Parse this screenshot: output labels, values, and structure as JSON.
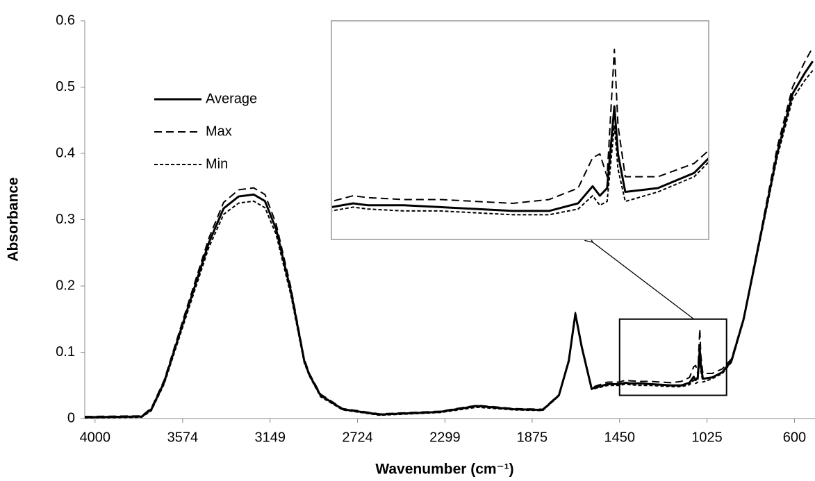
{
  "chart_data": {
    "type": "line",
    "x_label": "Wavenumber (cm⁻¹)",
    "y_label": "Absorbance",
    "xlim": [
      4050,
      500
    ],
    "xticks": [
      4000,
      3574,
      3149,
      2724,
      2299,
      1875,
      1450,
      1025,
      600
    ],
    "ylim": [
      0,
      0.6
    ],
    "yticks": [
      0,
      0.1,
      0.2,
      0.3,
      0.4,
      0.5,
      0.6
    ],
    "legend": "top-left",
    "inset": {
      "xlim": [
        1450,
        930
      ],
      "ylim": [
        0.035,
        0.15
      ]
    },
    "x": [
      4050,
      3773,
      3726,
      3664,
      3556,
      3447,
      3375,
      3302,
      3229,
      3174,
      3120,
      3048,
      2983,
      2958,
      2904,
      2796,
      2616,
      2324,
      2143,
      1962,
      1824,
      1745,
      1697,
      1665,
      1634,
      1586,
      1507,
      1450,
      1420,
      1400,
      1350,
      1300,
      1250,
      1200,
      1150,
      1110,
      1090,
      1080,
      1070,
      1060,
      1055,
      1045,
      1000,
      950,
      906,
      847,
      758,
      683,
      609,
      550,
      511
    ],
    "series": [
      {
        "name": "Average",
        "color": "#000000",
        "style": "solid",
        "values": [
          0.002,
          0.003,
          0.014,
          0.055,
          0.16,
          0.265,
          0.317,
          0.335,
          0.338,
          0.328,
          0.286,
          0.192,
          0.087,
          0.066,
          0.035,
          0.014,
          0.006,
          0.01,
          0.019,
          0.014,
          0.013,
          0.035,
          0.087,
          0.158,
          0.108,
          0.045,
          0.052,
          0.052,
          0.054,
          0.053,
          0.053,
          0.052,
          0.051,
          0.05,
          0.05,
          0.054,
          0.063,
          0.058,
          0.062,
          0.105,
          0.08,
          0.06,
          0.062,
          0.07,
          0.087,
          0.15,
          0.286,
          0.401,
          0.49,
          0.521,
          0.539
        ]
      },
      {
        "name": "Max",
        "color": "#000000",
        "style": "dashed",
        "values": [
          0.003,
          0.004,
          0.016,
          0.058,
          0.165,
          0.272,
          0.326,
          0.345,
          0.348,
          0.338,
          0.294,
          0.198,
          0.09,
          0.068,
          0.037,
          0.015,
          0.007,
          0.011,
          0.02,
          0.015,
          0.014,
          0.036,
          0.089,
          0.16,
          0.11,
          0.047,
          0.055,
          0.055,
          0.058,
          0.057,
          0.056,
          0.056,
          0.055,
          0.054,
          0.056,
          0.062,
          0.078,
          0.08,
          0.068,
          0.135,
          0.095,
          0.068,
          0.068,
          0.075,
          0.09,
          0.152,
          0.29,
          0.41,
          0.5,
          0.538,
          0.56
        ]
      },
      {
        "name": "Min",
        "color": "#000000",
        "style": "dotted",
        "values": [
          0.001,
          0.002,
          0.012,
          0.052,
          0.155,
          0.258,
          0.308,
          0.325,
          0.328,
          0.318,
          0.278,
          0.186,
          0.084,
          0.064,
          0.033,
          0.013,
          0.005,
          0.009,
          0.017,
          0.013,
          0.012,
          0.034,
          0.085,
          0.156,
          0.106,
          0.044,
          0.05,
          0.05,
          0.052,
          0.051,
          0.05,
          0.05,
          0.049,
          0.048,
          0.048,
          0.051,
          0.058,
          0.053,
          0.055,
          0.095,
          0.072,
          0.055,
          0.06,
          0.068,
          0.085,
          0.148,
          0.282,
          0.395,
          0.482,
          0.51,
          0.525
        ]
      }
    ]
  }
}
